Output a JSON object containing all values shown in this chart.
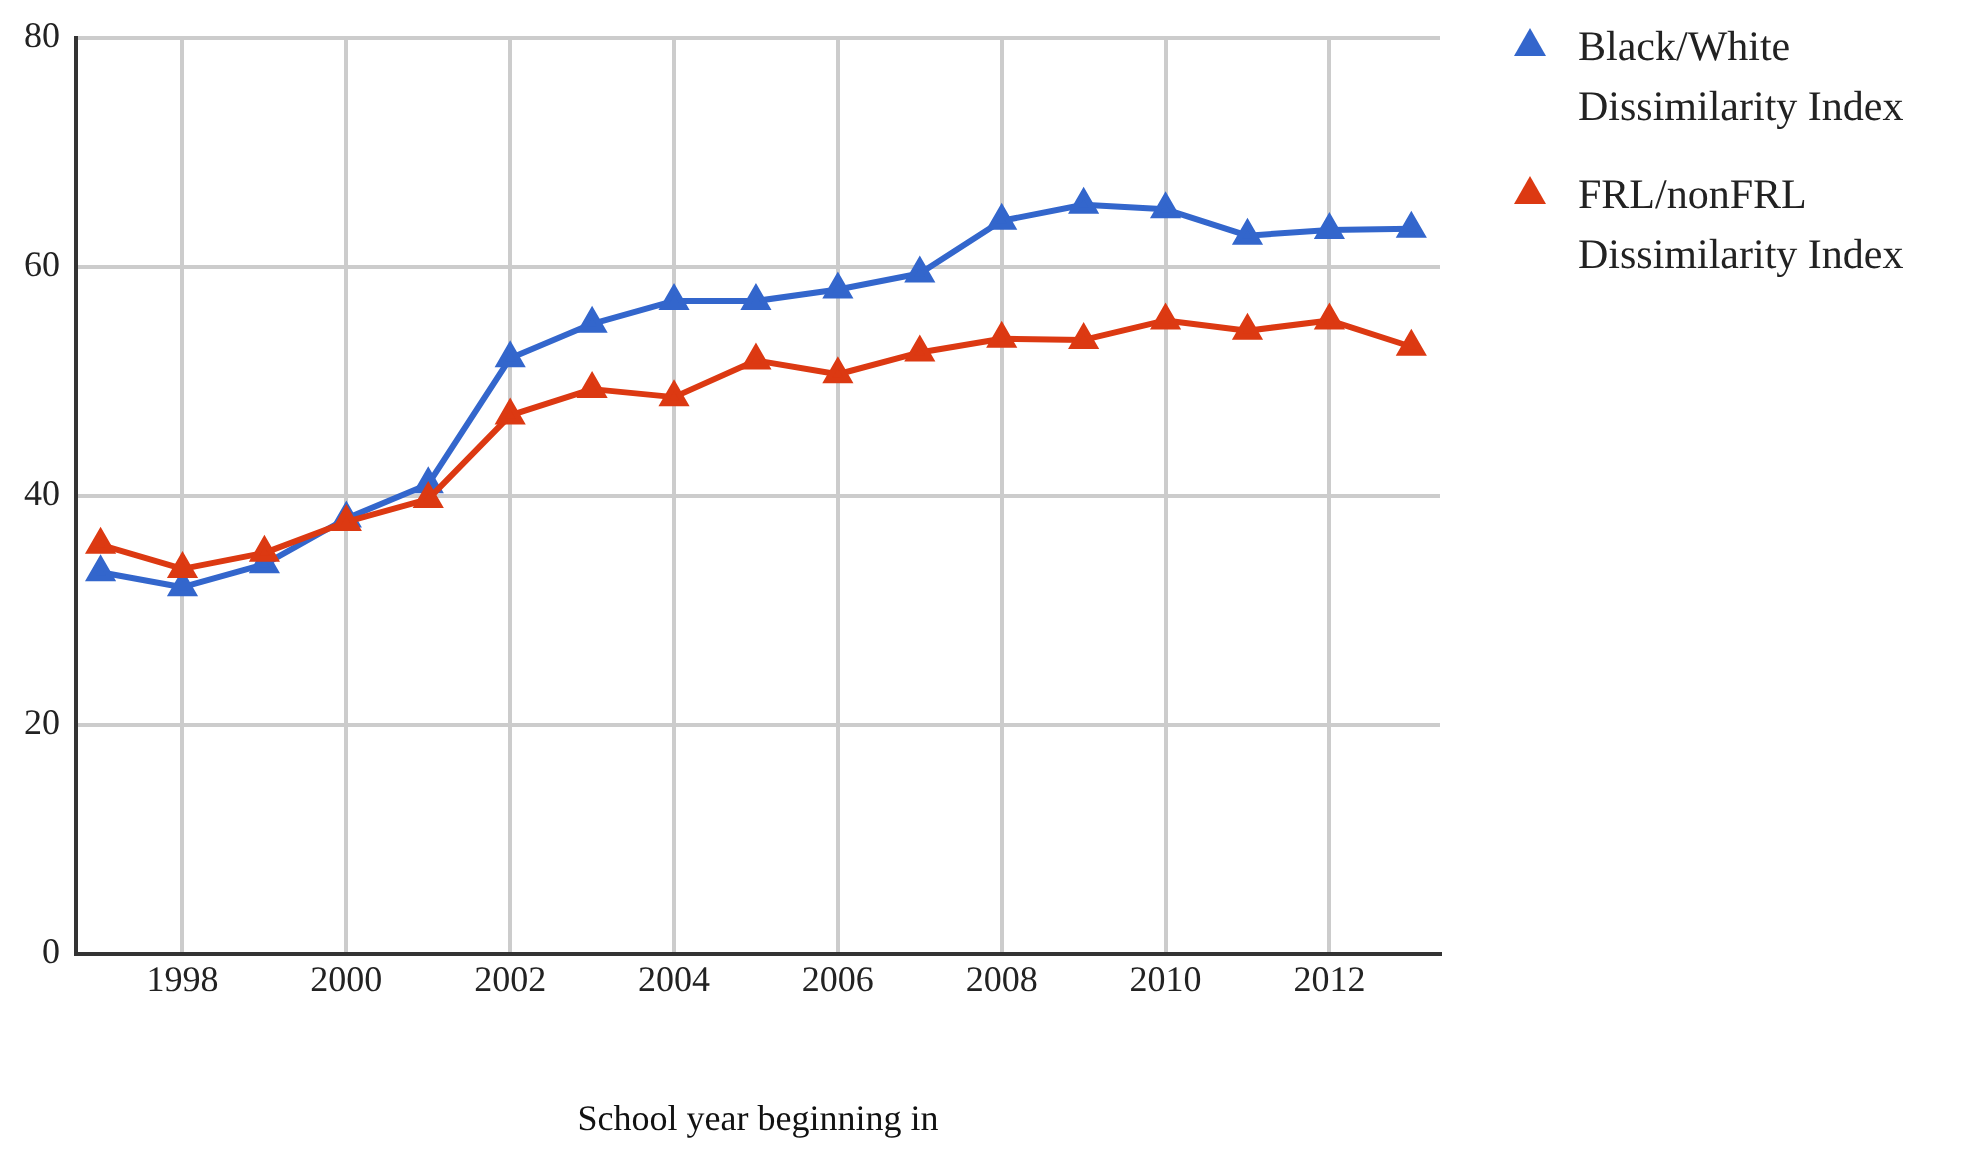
{
  "chart_data": {
    "type": "line",
    "xlabel": "School year beginning in",
    "x": [
      1997,
      1998,
      1999,
      2000,
      2001,
      2002,
      2003,
      2004,
      2005,
      2006,
      2007,
      2008,
      2009,
      2010,
      2011,
      2012,
      2013
    ],
    "series": [
      {
        "name": "Black/White Dissimilarity Index",
        "color": "#3366cc",
        "values": [
          33.3,
          32,
          34,
          38,
          41,
          52,
          55,
          57,
          57,
          58,
          59.4,
          64,
          65.4,
          65,
          62.7,
          63.2,
          63.3
        ]
      },
      {
        "name": "FRL/nonFRL Dissimilarity Index",
        "color": "#dc3912",
        "values": [
          35.7,
          33.6,
          35,
          37.7,
          39.7,
          47,
          49.3,
          48.6,
          51.8,
          50.6,
          52.5,
          53.7,
          53.6,
          55.3,
          54.4,
          55.3,
          53
        ]
      }
    ],
    "xlim": [
      1996.7,
      2013.35
    ],
    "xticks": [
      1998,
      2000,
      2002,
      2004,
      2006,
      2008,
      2010,
      2012
    ],
    "ylim": [
      0,
      80
    ],
    "yticks": [
      0,
      20,
      40,
      60,
      80
    ],
    "grid": true,
    "legend": "right",
    "marker": "triangle",
    "line_style": "solid"
  }
}
